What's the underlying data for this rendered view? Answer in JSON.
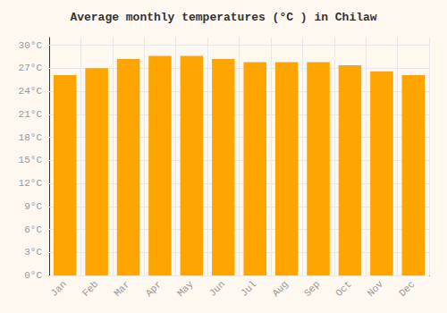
{
  "chart_data": {
    "type": "bar",
    "title": "Average monthly temperatures (°C ) in Chilaw",
    "categories": [
      "Jan",
      "Feb",
      "Mar",
      "Apr",
      "May",
      "Jun",
      "Jul",
      "Aug",
      "Sep",
      "Oct",
      "Nov",
      "Dec"
    ],
    "values": [
      26.1,
      27.0,
      28.2,
      28.6,
      28.6,
      28.2,
      27.8,
      27.8,
      27.8,
      27.4,
      26.6,
      26.1
    ],
    "color": "#FFA500",
    "ylim": [
      0,
      31
    ],
    "yticks": [
      {
        "value": 0,
        "label": "0°C"
      },
      {
        "value": 3,
        "label": "3°C"
      },
      {
        "value": 6,
        "label": "6°C"
      },
      {
        "value": 9,
        "label": "9°C"
      },
      {
        "value": 12,
        "label": "12°C"
      },
      {
        "value": 15,
        "label": "15°C"
      },
      {
        "value": 18,
        "label": "18°C"
      },
      {
        "value": 21,
        "label": "21°C"
      },
      {
        "value": 24,
        "label": "24°C"
      },
      {
        "value": 27,
        "label": "27°C"
      },
      {
        "value": 30,
        "label": "30°C"
      }
    ],
    "grid": true
  }
}
